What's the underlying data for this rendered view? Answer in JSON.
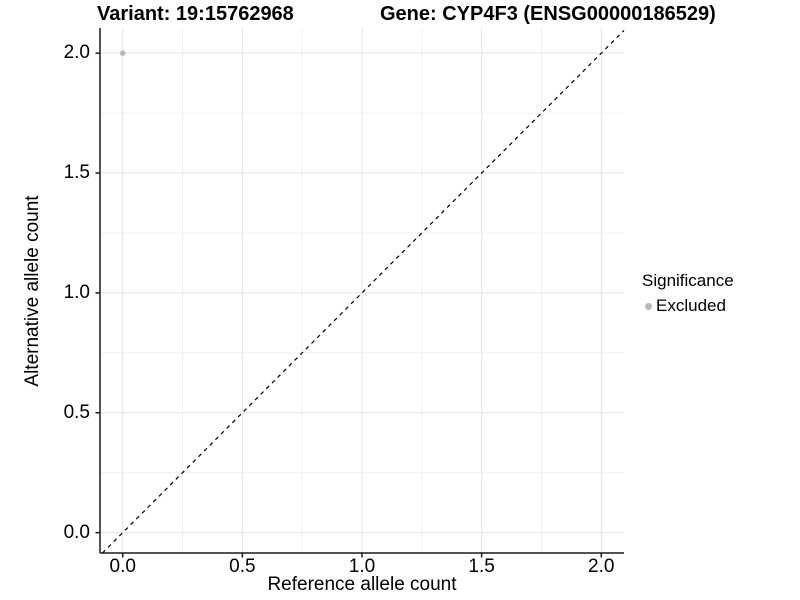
{
  "chart_data": {
    "type": "scatter",
    "title_left": "Variant: 19:15762968",
    "title_right": "Gene: CYP4F3 (ENSG00000186529)",
    "xlabel": "Reference allele count",
    "ylabel": "Alternative allele count",
    "xlim": [
      -0.095,
      2.095
    ],
    "ylim": [
      -0.085,
      2.105
    ],
    "x_ticks": [
      "0.0",
      "0.5",
      "1.0",
      "1.5",
      "2.0"
    ],
    "y_ticks": [
      "0.0",
      "0.5",
      "1.0",
      "1.5",
      "2.0"
    ],
    "x_tick_values": [
      0,
      0.5,
      1,
      1.5,
      2
    ],
    "y_tick_values": [
      0,
      0.5,
      1,
      1.5,
      2
    ],
    "minor_tick_values": [
      0.25,
      0.75,
      1.25,
      1.75
    ],
    "grid": true,
    "legend_position": "right",
    "legend_title": "Significance",
    "series": [
      {
        "name": "Excluded",
        "color": "#b8b8b8",
        "points": [
          {
            "x": 0.0,
            "y": 2.0
          }
        ]
      }
    ],
    "reference_line": {
      "slope": 1,
      "intercept": 0,
      "style": "dashed",
      "color": "#000000"
    },
    "colors": {
      "grid_major": "#e4e4e4",
      "grid_minor": "#f0f0f0",
      "axis": "#1a1a1a",
      "point": "#b8b8b8"
    }
  }
}
